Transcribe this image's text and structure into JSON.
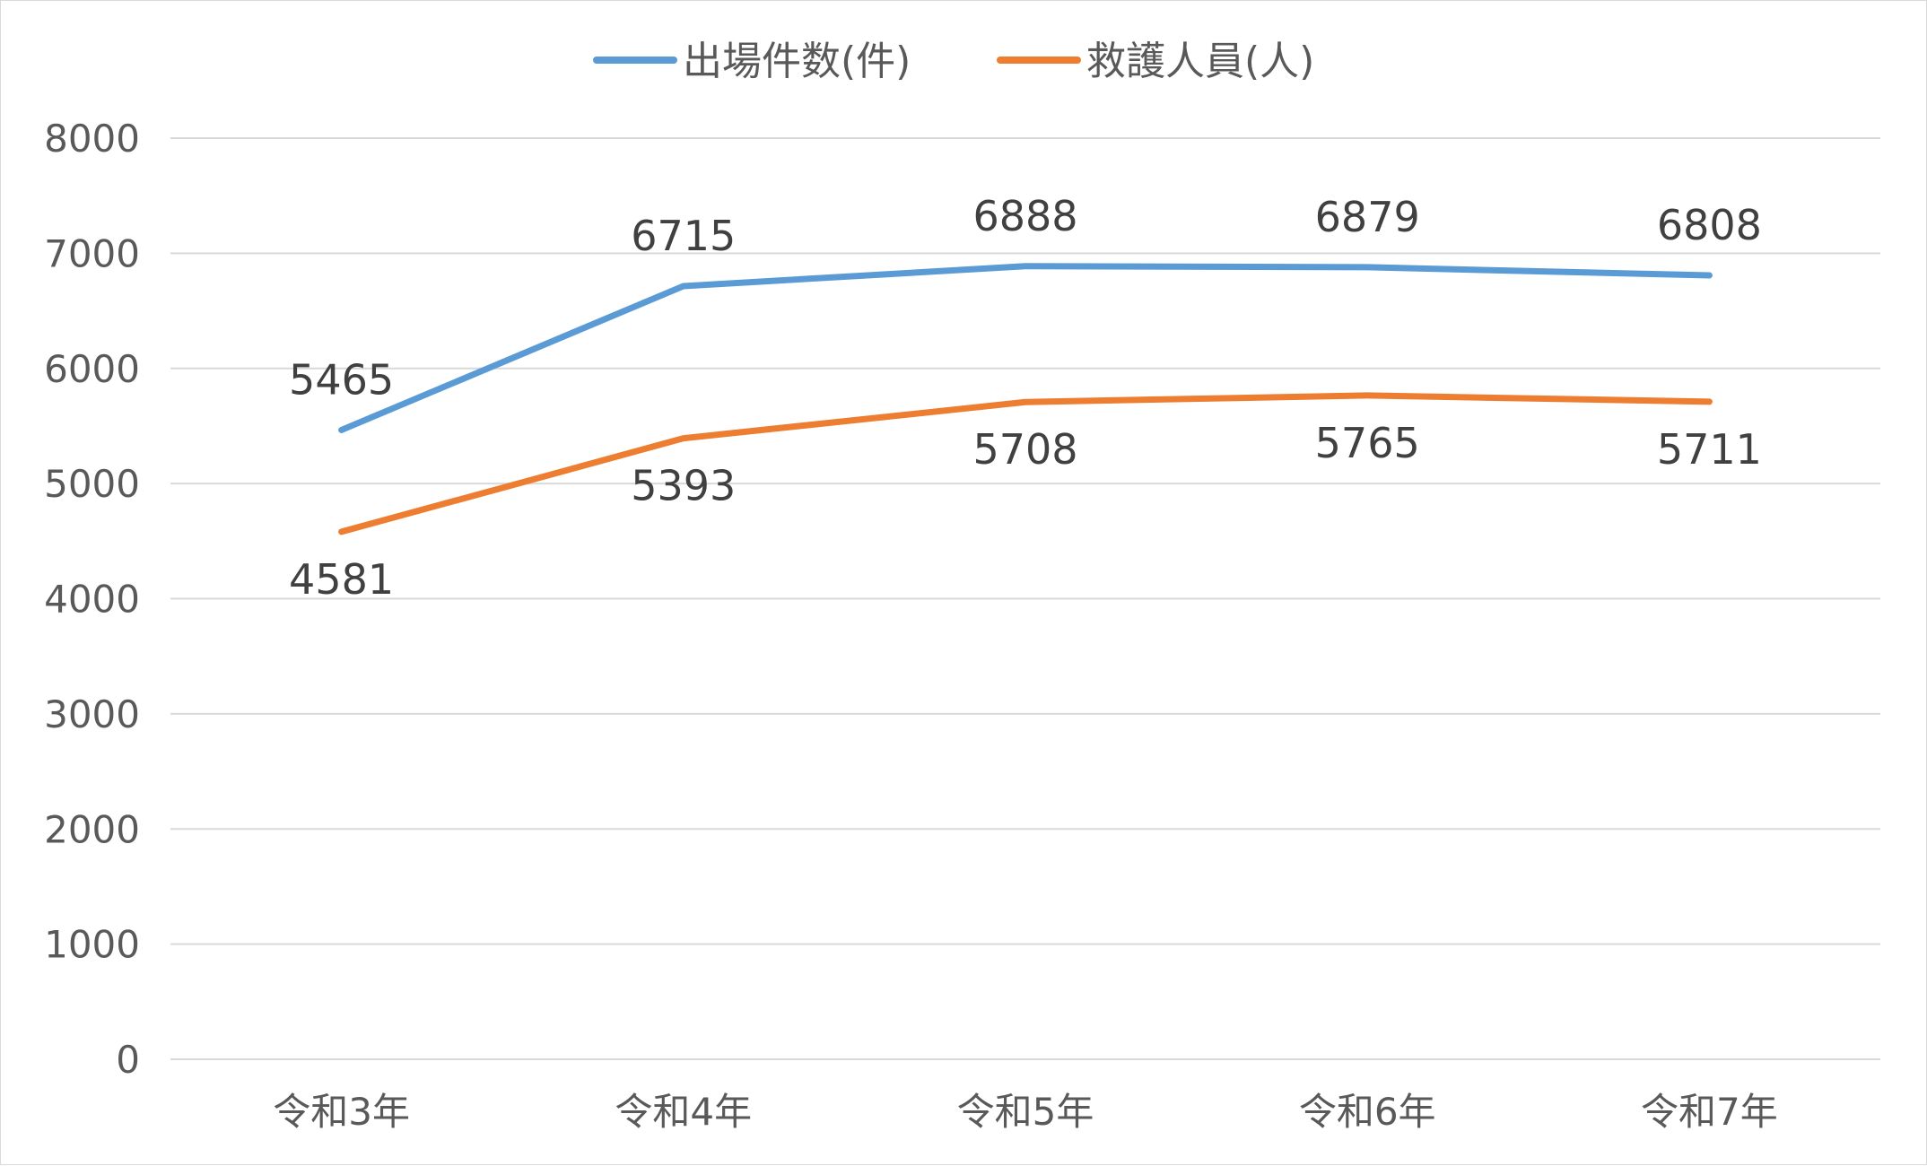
{
  "chart_data": {
    "type": "line",
    "title": "",
    "xlabel": "",
    "ylabel": "",
    "categories": [
      "令和3年",
      "令和4年",
      "令和5年",
      "令和6年",
      "令和7年"
    ],
    "y_ticks": [
      "0",
      "1000",
      "2000",
      "3000",
      "4000",
      "5000",
      "6000",
      "7000",
      "8000"
    ],
    "ylim": [
      0,
      8000
    ],
    "grid": true,
    "legend_position": "top",
    "series": [
      {
        "name": "出場件数(件)",
        "color": "#5b9bd5",
        "values": [
          5465,
          6715,
          6888,
          6879,
          6808
        ],
        "label_position": "above"
      },
      {
        "name": "救護人員(人)",
        "color": "#ed7d31",
        "values": [
          4581,
          5393,
          5708,
          5765,
          5711
        ],
        "label_position": "below"
      }
    ],
    "gridline_color": "#d9d9d9",
    "text_color": "#595959",
    "label_color": "#404040"
  }
}
